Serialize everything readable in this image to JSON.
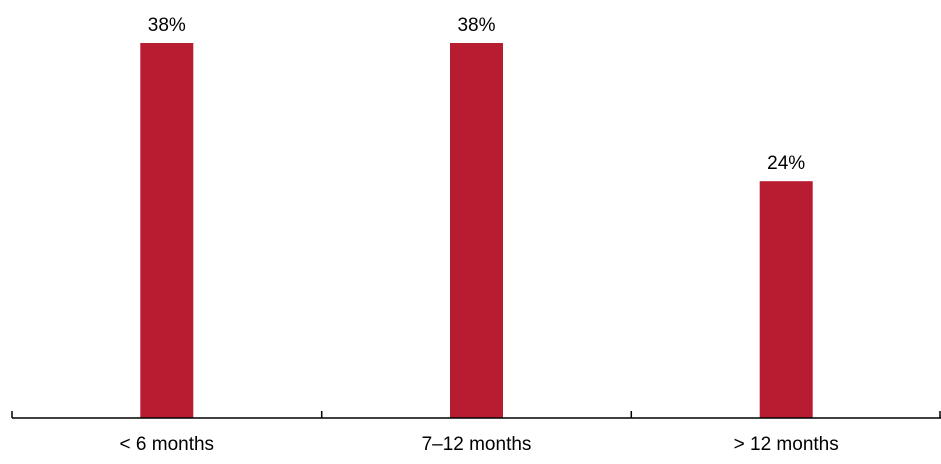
{
  "chart_data": {
    "type": "bar",
    "title": "",
    "xlabel": "",
    "ylabel": "",
    "categories": [
      "< 6 months",
      "7–12 months",
      "> 12 months"
    ],
    "values": [
      38,
      38,
      24
    ],
    "value_labels": [
      "38%",
      "38%",
      "24%"
    ],
    "ylim": [
      0,
      40
    ],
    "grid": false,
    "legend": "none",
    "bar_color": "#b71c31",
    "axis_color": "#000000"
  }
}
